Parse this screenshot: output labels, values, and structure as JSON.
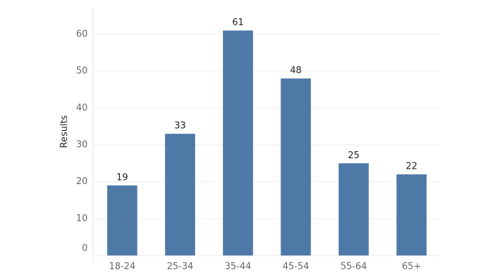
{
  "chart_data": {
    "type": "bar",
    "y_label": "Results",
    "categories": [
      "18-24",
      "25-34",
      "35-44",
      "45-54",
      "55-64",
      "65+"
    ],
    "values": [
      19,
      33,
      61,
      48,
      25,
      22
    ],
    "color": "#4e79a7",
    "ylim": [
      0,
      67
    ],
    "yticks": [
      0,
      10,
      20,
      30,
      40,
      50,
      60
    ],
    "grid": true
  }
}
